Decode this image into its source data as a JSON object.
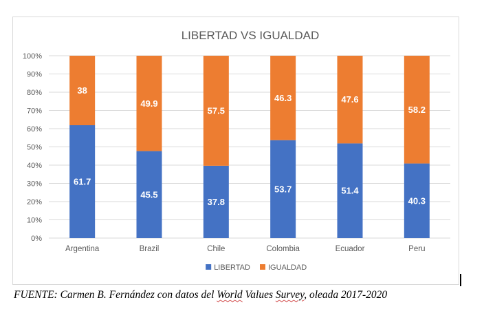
{
  "chart_data": {
    "type": "bar",
    "stacked": true,
    "percent": true,
    "title": "LIBERTAD VS IGUALDAD",
    "categories": [
      "Argentina",
      "Brazil",
      "Chile",
      "Colombia",
      "Ecuador",
      "Peru"
    ],
    "series": [
      {
        "name": "LIBERTAD",
        "color": "#4472c4",
        "values": [
          61.7,
          45.5,
          37.8,
          53.7,
          51.4,
          40.3
        ]
      },
      {
        "name": "IGUALDAD",
        "color": "#ed7d31",
        "values": [
          38,
          49.9,
          57.5,
          46.3,
          47.6,
          58.2
        ]
      }
    ],
    "ylim": [
      0,
      100
    ],
    "yticks": [
      "0%",
      "10%",
      "20%",
      "30%",
      "40%",
      "50%",
      "60%",
      "70%",
      "80%",
      "90%",
      "100%"
    ],
    "xlabel": "",
    "ylabel": "",
    "grid": true,
    "legend": "bottom"
  },
  "caption": {
    "prefix": "FUENTE: Carmen B. Fernández con datos del ",
    "underlined_1": "World",
    "middle": " Values ",
    "underlined_2": "Survey",
    "suffix": ", oleada 2017-2020"
  }
}
